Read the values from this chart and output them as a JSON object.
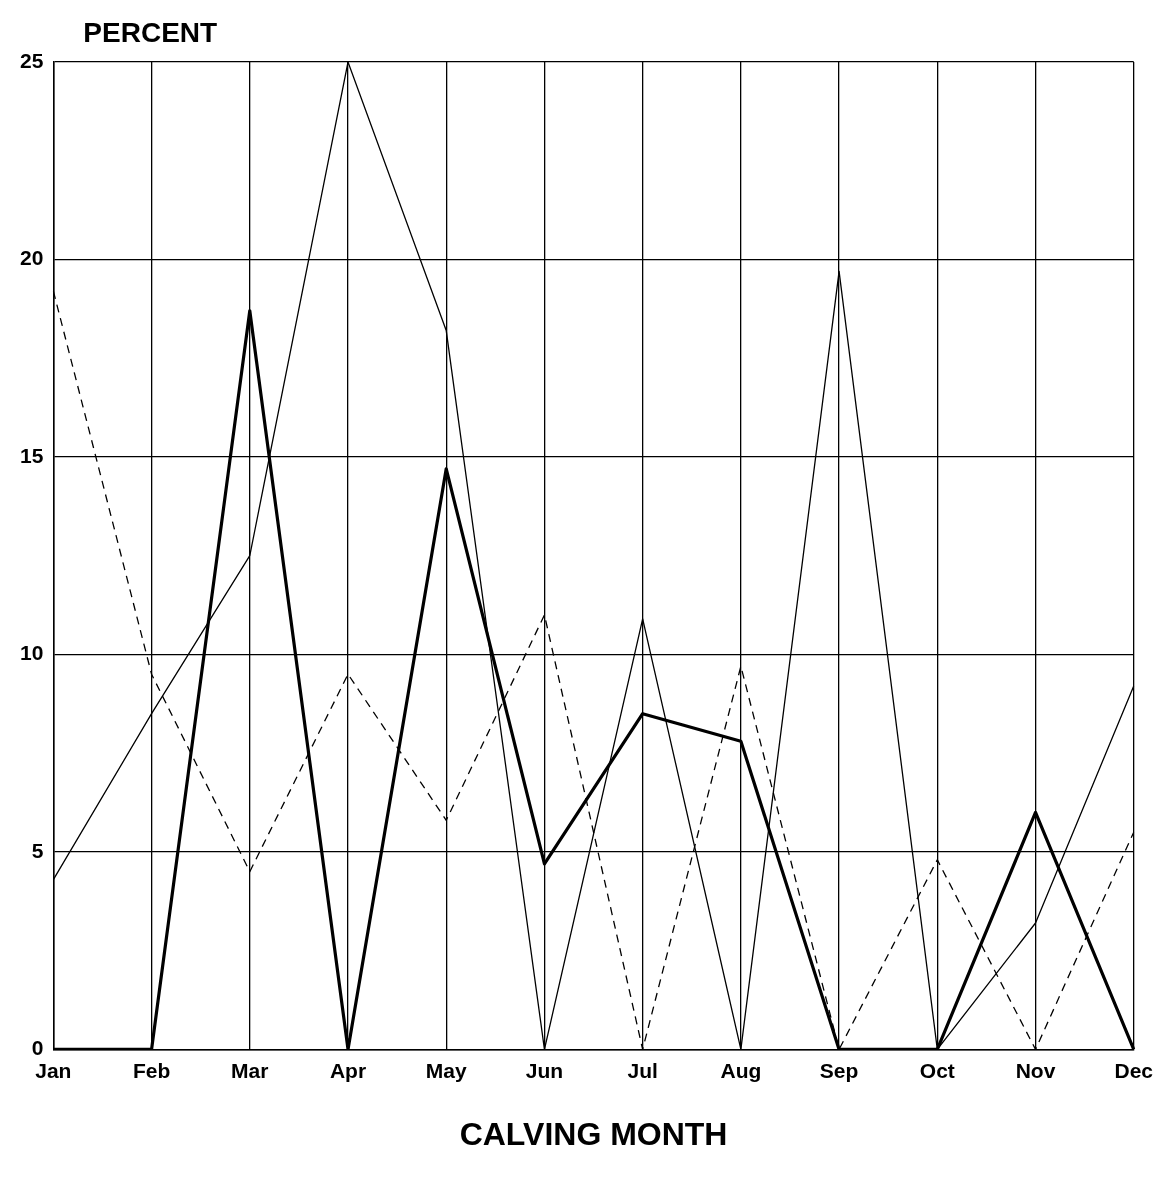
{
  "chart_data": {
    "type": "line",
    "ylabel": "PERCENT",
    "xlabel": "CALVING MONTH",
    "categories": [
      "Jan",
      "Feb",
      "Mar",
      "Apr",
      "May",
      "Jun",
      "Jul",
      "Aug",
      "Sep",
      "Oct",
      "Nov",
      "Dec"
    ],
    "series": [
      {
        "color": "#000000",
        "line_style": "solid",
        "values": [
          4.3,
          8.5,
          12.5,
          25,
          18.2,
          0,
          10.9,
          0,
          19.7,
          0,
          3.2,
          9.2
        ]
      },
      {
        "color": "#000000",
        "line_style": "solid",
        "values": [
          0,
          0,
          18.7,
          0,
          14.7,
          4.7,
          8.5,
          7.8,
          0,
          0,
          6,
          0
        ]
      },
      {
        "color": "#000000",
        "line_style": "dashed",
        "values": [
          19.2,
          9.5,
          4.5,
          9.5,
          5.8,
          11,
          0,
          9.7,
          0,
          4.8,
          0,
          5.5
        ]
      }
    ],
    "ylim": [
      0,
      25
    ],
    "yticks": [
      0,
      5,
      10,
      15,
      20,
      25
    ],
    "grid": true,
    "legend": false,
    "marker": "none"
  }
}
